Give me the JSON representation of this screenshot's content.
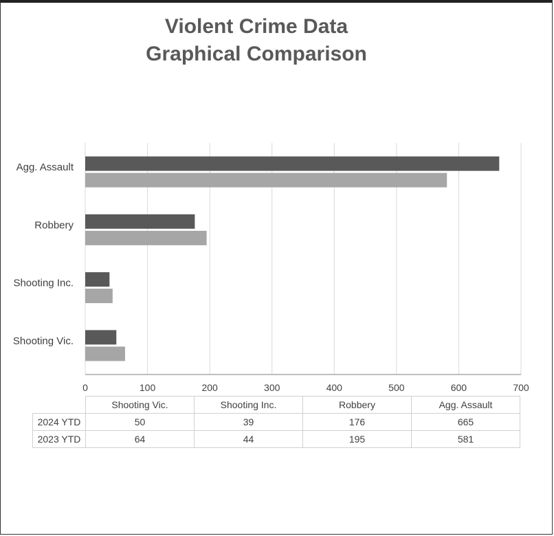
{
  "chart_data": {
    "type": "bar",
    "orientation": "horizontal",
    "title_line1": "Violent Crime Data",
    "title_line2": "Graphical Comparison",
    "categories": [
      "Shooting Vic.",
      "Shooting Inc.",
      "Robbery",
      "Agg. Assault"
    ],
    "series": [
      {
        "name": "2024 YTD",
        "values": [
          50,
          39,
          176,
          665
        ],
        "color": "#595959"
      },
      {
        "name": "2023 YTD",
        "values": [
          64,
          44,
          195,
          581
        ],
        "color": "#a6a6a6"
      }
    ],
    "xlim": [
      0,
      700
    ],
    "xticks": [
      "0",
      "100",
      "200",
      "300",
      "400",
      "500",
      "600",
      "700"
    ],
    "grid": "vertical",
    "legend": "data-table"
  },
  "table": {
    "headers": [
      "Shooting Vic.",
      "Shooting Inc.",
      "Robbery",
      "Agg. Assault"
    ],
    "rows": [
      {
        "label": "2024 YTD",
        "values": [
          "50",
          "39",
          "176",
          "665"
        ]
      },
      {
        "label": "2023 YTD",
        "values": [
          "64",
          "44",
          "195",
          "581"
        ]
      }
    ]
  }
}
